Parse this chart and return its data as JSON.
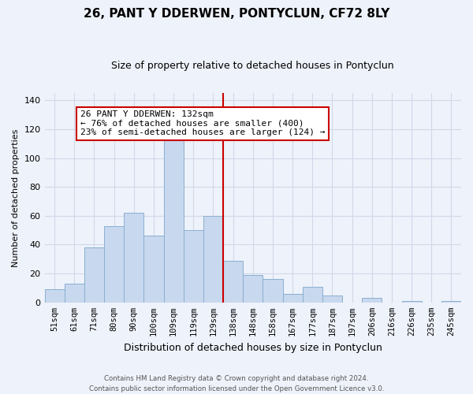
{
  "title": "26, PANT Y DDERWEN, PONTYCLUN, CF72 8LY",
  "subtitle": "Size of property relative to detached houses in Pontyclun",
  "xlabel": "Distribution of detached houses by size in Pontyclun",
  "ylabel": "Number of detached properties",
  "categories": [
    "51sqm",
    "61sqm",
    "71sqm",
    "80sqm",
    "90sqm",
    "100sqm",
    "109sqm",
    "119sqm",
    "129sqm",
    "138sqm",
    "148sqm",
    "158sqm",
    "167sqm",
    "177sqm",
    "187sqm",
    "197sqm",
    "206sqm",
    "216sqm",
    "226sqm",
    "235sqm",
    "245sqm"
  ],
  "values": [
    9,
    13,
    38,
    53,
    62,
    46,
    113,
    50,
    60,
    29,
    19,
    16,
    6,
    11,
    5,
    0,
    3,
    0,
    1,
    0,
    1
  ],
  "bar_color": "#c8d8ee",
  "bar_edge_color": "#8ab0d0",
  "ylim": [
    0,
    145
  ],
  "yticks": [
    0,
    20,
    40,
    60,
    80,
    100,
    120,
    140
  ],
  "vline_x": 8.5,
  "annotation_line1": "26 PANT Y DDERWEN: 132sqm",
  "annotation_line2": "← 76% of detached houses are smaller (400)",
  "annotation_line3": "23% of semi-detached houses are larger (124) →",
  "annotation_box_color": "#ffffff",
  "annotation_box_edge": "#cc0000",
  "vline_color": "#cc0000",
  "footer_line1": "Contains HM Land Registry data © Crown copyright and database right 2024.",
  "footer_line2": "Contains public sector information licensed under the Open Government Licence v3.0.",
  "background_color": "#eef2fa",
  "grid_color": "#d0d8e8",
  "title_fontsize": 11,
  "subtitle_fontsize": 9,
  "ylabel_fontsize": 8,
  "xlabel_fontsize": 9,
  "tick_fontsize": 7.5,
  "annotation_fontsize": 8
}
